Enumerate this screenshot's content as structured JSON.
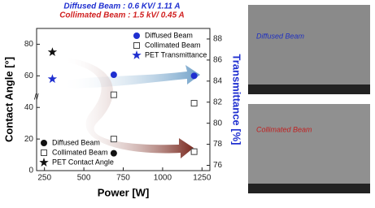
{
  "chart_data": {
    "type": "scatter",
    "annotations": [
      {
        "text": "Diffused Beam  : 0.6 KV/ 1.11 A",
        "color": "#1f2fd0"
      },
      {
        "text": "Collimated Beam : 1.5 kV/ 0.45 A",
        "color": "#d02020"
      }
    ],
    "x_label": "Power [W]",
    "y_label": "Contact Angle [°]",
    "y2_label": "Transmittance [%]",
    "xlim": [
      200,
      1300
    ],
    "xticks": [
      250,
      500,
      750,
      1000,
      1250
    ],
    "ylim": [
      0,
      90
    ],
    "yticks": [
      0,
      20,
      40,
      60,
      80
    ],
    "y2lim": [
      75.5,
      89
    ],
    "y2ticks": [
      76,
      78,
      80,
      82,
      84,
      86,
      88
    ],
    "legend_y2": "upper right",
    "legend_y": "lower left",
    "series": [
      {
        "name": "Diffused Beam",
        "axis": "y2",
        "marker": "circle",
        "color": "#1f2fd0",
        "x": [
          690,
          1200
        ],
        "values": [
          84.6,
          84.5
        ]
      },
      {
        "name": "Collimated Beam",
        "axis": "y2",
        "marker": "square",
        "color": "#444444",
        "x": [
          690,
          1200
        ],
        "values": [
          82.7,
          81.9
        ]
      },
      {
        "name": "PET Transmittance",
        "axis": "y2",
        "marker": "star",
        "color": "#1f2fd0",
        "x": [
          300
        ],
        "values": [
          84.2
        ]
      },
      {
        "name": "Diffused Beam",
        "axis": "y",
        "marker": "circle",
        "color": "#111111",
        "x": [
          690,
          1200
        ],
        "values": [
          11,
          12
        ]
      },
      {
        "name": "Collimated Beam",
        "axis": "y",
        "marker": "square",
        "color": "#444444",
        "x": [
          690,
          1200
        ],
        "values": [
          20,
          12
        ]
      },
      {
        "name": "PET Contact Angle",
        "axis": "y",
        "marker": "star",
        "color": "#111111",
        "x": [
          300
        ],
        "values": [
          75
        ]
      }
    ]
  },
  "images": [
    {
      "label": "Diffused Beam",
      "color": "#2030c0"
    },
    {
      "label": "Collimated Beam",
      "color": "#c02020"
    }
  ]
}
